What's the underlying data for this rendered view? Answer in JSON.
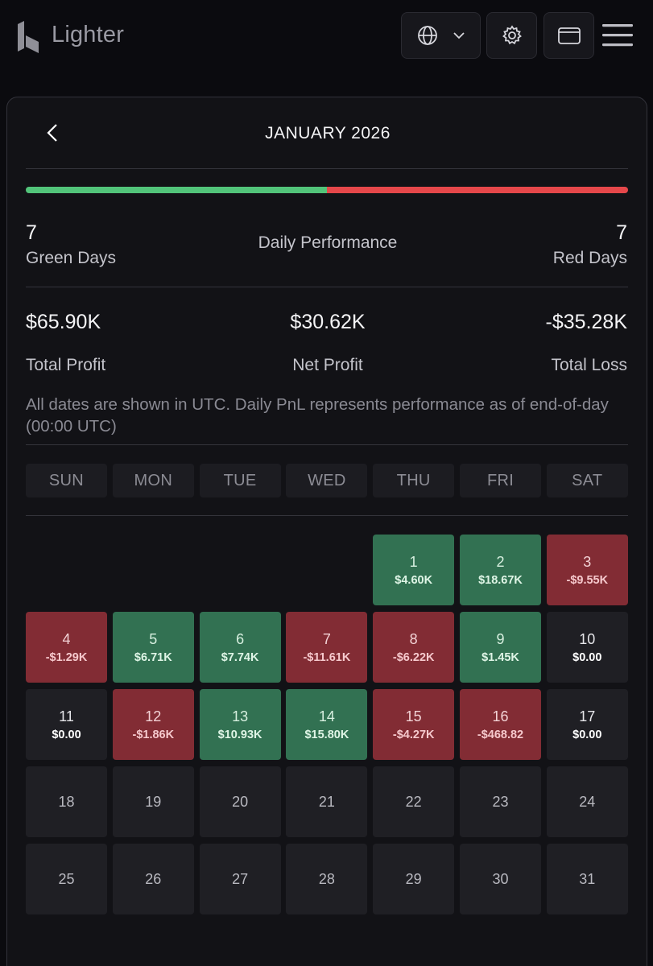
{
  "header": {
    "brand": "Lighter",
    "icons": {
      "logo": "lighter-logo-icon",
      "language": "globe-icon",
      "settings": "gear-icon",
      "wallet": "wallet-icon",
      "menu": "hamburger-menu-icon"
    }
  },
  "calendar": {
    "month_title": "JANUARY 2026",
    "performance_label": "Daily Performance",
    "green_days": {
      "count": "7",
      "label": "Green Days"
    },
    "red_days": {
      "count": "7",
      "label": "Red Days"
    },
    "green_ratio": 0.5,
    "total_profit": {
      "value": "$65.90K",
      "label": "Total Profit"
    },
    "net_profit": {
      "value": "$30.62K",
      "label": "Net Profit"
    },
    "total_loss": {
      "value": "-$35.28K",
      "label": "Total Loss"
    },
    "note": "All dates are shown in UTC. Daily PnL represents performance as of end-of-day (00:00 UTC)",
    "weekdays": [
      "SUN",
      "MON",
      "TUE",
      "WED",
      "THU",
      "FRI",
      "SAT"
    ],
    "first_weekday_index": 4,
    "colors": {
      "green": "#327152",
      "red": "#822c34",
      "neutral": "#1f1f24",
      "bar_green": "#52c47a",
      "bar_red": "#e5474a"
    },
    "days": [
      {
        "day": "1",
        "pnl": "$4.60K",
        "status": "green"
      },
      {
        "day": "2",
        "pnl": "$18.67K",
        "status": "green"
      },
      {
        "day": "3",
        "pnl": "-$9.55K",
        "status": "red"
      },
      {
        "day": "4",
        "pnl": "-$1.29K",
        "status": "red"
      },
      {
        "day": "5",
        "pnl": "$6.71K",
        "status": "green"
      },
      {
        "day": "6",
        "pnl": "$7.74K",
        "status": "green"
      },
      {
        "day": "7",
        "pnl": "-$11.61K",
        "status": "red"
      },
      {
        "day": "8",
        "pnl": "-$6.22K",
        "status": "red"
      },
      {
        "day": "9",
        "pnl": "$1.45K",
        "status": "green"
      },
      {
        "day": "10",
        "pnl": "$0.00",
        "status": "zero"
      },
      {
        "day": "11",
        "pnl": "$0.00",
        "status": "zero"
      },
      {
        "day": "12",
        "pnl": "-$1.86K",
        "status": "red"
      },
      {
        "day": "13",
        "pnl": "$10.93K",
        "status": "green"
      },
      {
        "day": "14",
        "pnl": "$15.80K",
        "status": "green"
      },
      {
        "day": "15",
        "pnl": "-$4.27K",
        "status": "red"
      },
      {
        "day": "16",
        "pnl": "-$468.82",
        "status": "red"
      },
      {
        "day": "17",
        "pnl": "$0.00",
        "status": "zero"
      },
      {
        "day": "18",
        "pnl": "",
        "status": "empty"
      },
      {
        "day": "19",
        "pnl": "",
        "status": "empty"
      },
      {
        "day": "20",
        "pnl": "",
        "status": "empty"
      },
      {
        "day": "21",
        "pnl": "",
        "status": "empty"
      },
      {
        "day": "22",
        "pnl": "",
        "status": "empty"
      },
      {
        "day": "23",
        "pnl": "",
        "status": "empty"
      },
      {
        "day": "24",
        "pnl": "",
        "status": "empty"
      },
      {
        "day": "25",
        "pnl": "",
        "status": "empty"
      },
      {
        "day": "26",
        "pnl": "",
        "status": "empty"
      },
      {
        "day": "27",
        "pnl": "",
        "status": "empty"
      },
      {
        "day": "28",
        "pnl": "",
        "status": "empty"
      },
      {
        "day": "29",
        "pnl": "",
        "status": "empty"
      },
      {
        "day": "30",
        "pnl": "",
        "status": "empty"
      },
      {
        "day": "31",
        "pnl": "",
        "status": "empty"
      }
    ]
  }
}
